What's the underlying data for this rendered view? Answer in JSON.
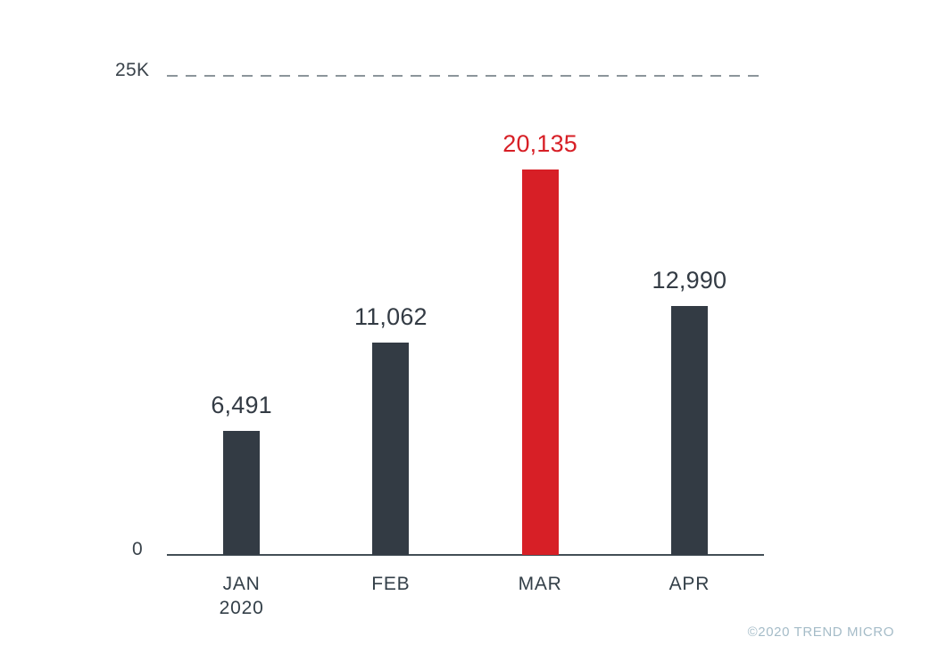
{
  "chart_data": {
    "type": "bar",
    "categories": [
      {
        "label": "JAN",
        "sublabel": "2020"
      },
      {
        "label": "FEB",
        "sublabel": ""
      },
      {
        "label": "MAR",
        "sublabel": ""
      },
      {
        "label": "APR",
        "sublabel": ""
      }
    ],
    "values": [
      6491,
      11062,
      20135,
      12990
    ],
    "value_labels": [
      "6,491",
      "11,062",
      "20,135",
      "12,990"
    ],
    "highlight_index": 2,
    "title": "",
    "xlabel": "",
    "ylabel": "",
    "ylim": [
      0,
      25000
    ],
    "yticks": [
      {
        "value": 0,
        "label": "0"
      },
      {
        "value": 25000,
        "label": "25K"
      }
    ],
    "gridlines": [
      {
        "value": 25000,
        "style": "dashed"
      }
    ],
    "legend": null,
    "colors": {
      "bar": "#333b44",
      "highlight": "#d71f26",
      "axis": "#434e56",
      "gridline": "#8c959b",
      "tick_text": "#3a434b",
      "value_text": "#333b44",
      "category_text": "#333f48",
      "footer_text": "#a5bcc8"
    }
  },
  "footer": {
    "copyright": "©2020 TREND MICRO"
  }
}
